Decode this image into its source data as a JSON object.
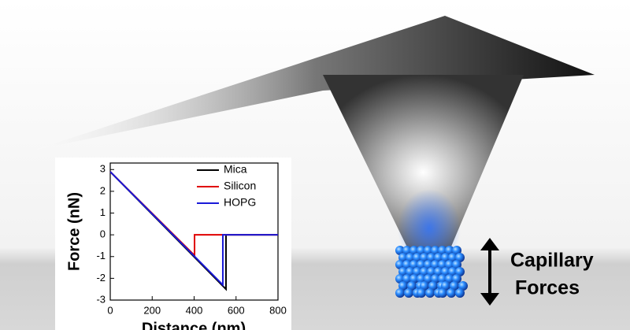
{
  "chart_data": {
    "type": "line",
    "xlabel": "Distance (nm)",
    "ylabel": "Force (nN)",
    "xlim": [
      0,
      800
    ],
    "xticks": [
      0,
      200,
      400,
      600,
      800
    ],
    "ylim": [
      -3,
      3.3
    ],
    "yticks": [
      -3,
      -2,
      -1,
      0,
      1,
      2,
      3
    ],
    "legend": "top-right",
    "series": [
      {
        "name": "Mica",
        "color": "#000000",
        "x": [
          0,
          552,
          552,
          800
        ],
        "values": [
          2.9,
          -2.5,
          0,
          0
        ]
      },
      {
        "name": "Silicon",
        "color": "#e00000",
        "x": [
          0,
          402,
          402,
          800
        ],
        "values": [
          2.9,
          -0.95,
          0,
          0
        ]
      },
      {
        "name": "HOPG",
        "color": "#1a1ad8",
        "x": [
          0,
          537,
          537,
          800
        ],
        "values": [
          2.9,
          -2.3,
          0,
          0
        ]
      }
    ],
    "annotation": [
      "Capillary",
      "Forces"
    ]
  }
}
